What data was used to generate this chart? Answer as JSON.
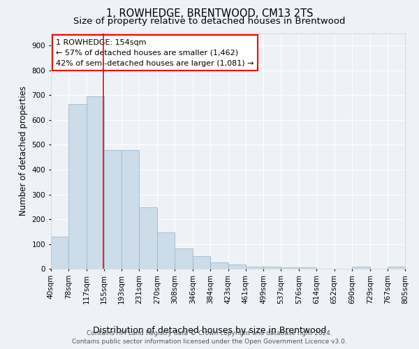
{
  "title": "1, ROWHEDGE, BRENTWOOD, CM13 2TS",
  "subtitle": "Size of property relative to detached houses in Brentwood",
  "xlabel": "Distribution of detached houses by size in Brentwood",
  "ylabel": "Number of detached properties",
  "footer_line1": "Contains HM Land Registry data © Crown copyright and database right 2024.",
  "footer_line2": "Contains public sector information licensed under the Open Government Licence v3.0.",
  "annotation_line1": "1 ROWHEDGE: 154sqm",
  "annotation_line2": "← 57% of detached houses are smaller (1,462)",
  "annotation_line3": "42% of semi-detached houses are larger (1,081) →",
  "bar_color": "#ccdce8",
  "bar_edge_color": "#a0b8cc",
  "red_line_x": 154,
  "bin_edges": [
    40,
    78,
    117,
    155,
    193,
    231,
    270,
    308,
    346,
    384,
    423,
    461,
    499,
    537,
    576,
    614,
    652,
    690,
    729,
    767,
    805
  ],
  "bar_heights": [
    130,
    665,
    695,
    480,
    480,
    248,
    148,
    83,
    50,
    25,
    18,
    10,
    10,
    5,
    5,
    0,
    0,
    10,
    0,
    10
  ],
  "ylim": [
    0,
    950
  ],
  "yticks": [
    0,
    100,
    200,
    300,
    400,
    500,
    600,
    700,
    800,
    900
  ],
  "background_color": "#eef2f7",
  "axes_background": "#eef2f7",
  "grid_color": "#ffffff",
  "title_fontsize": 10.5,
  "subtitle_fontsize": 9.5,
  "xlabel_fontsize": 9,
  "ylabel_fontsize": 8.5,
  "tick_fontsize": 7.5,
  "annotation_fontsize": 8,
  "footer_fontsize": 6.5
}
